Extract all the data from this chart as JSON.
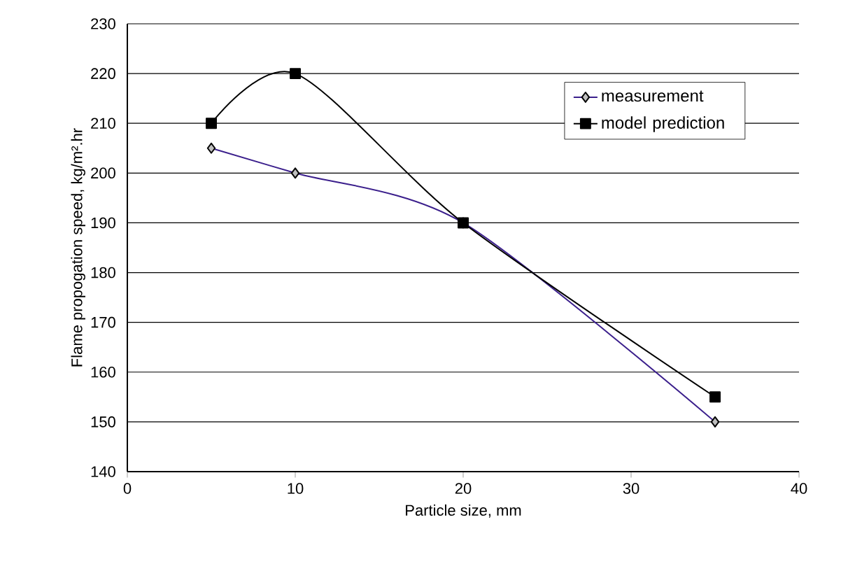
{
  "chart_data": {
    "type": "line",
    "xlabel": "Particle size, mm",
    "ylabel": "Flame propogation speed, kg/m².hr",
    "x": [
      5,
      10,
      20,
      35
    ],
    "series": [
      {
        "name": "measurement",
        "color": "#3b1f8c",
        "values": [
          205,
          200,
          190,
          150
        ],
        "marker": "diamond"
      },
      {
        "name": "model prediction",
        "color": "#000000",
        "values": [
          210,
          220,
          190,
          155
        ],
        "marker": "square"
      }
    ],
    "xlim": [
      0,
      40
    ],
    "xticks": [
      0,
      10,
      20,
      30,
      40
    ],
    "ylim": [
      140,
      230
    ],
    "yticks": [
      140,
      150,
      160,
      170,
      180,
      190,
      200,
      210,
      220,
      230
    ],
    "grid": "y",
    "legend": "top right",
    "line_style": "solid"
  }
}
